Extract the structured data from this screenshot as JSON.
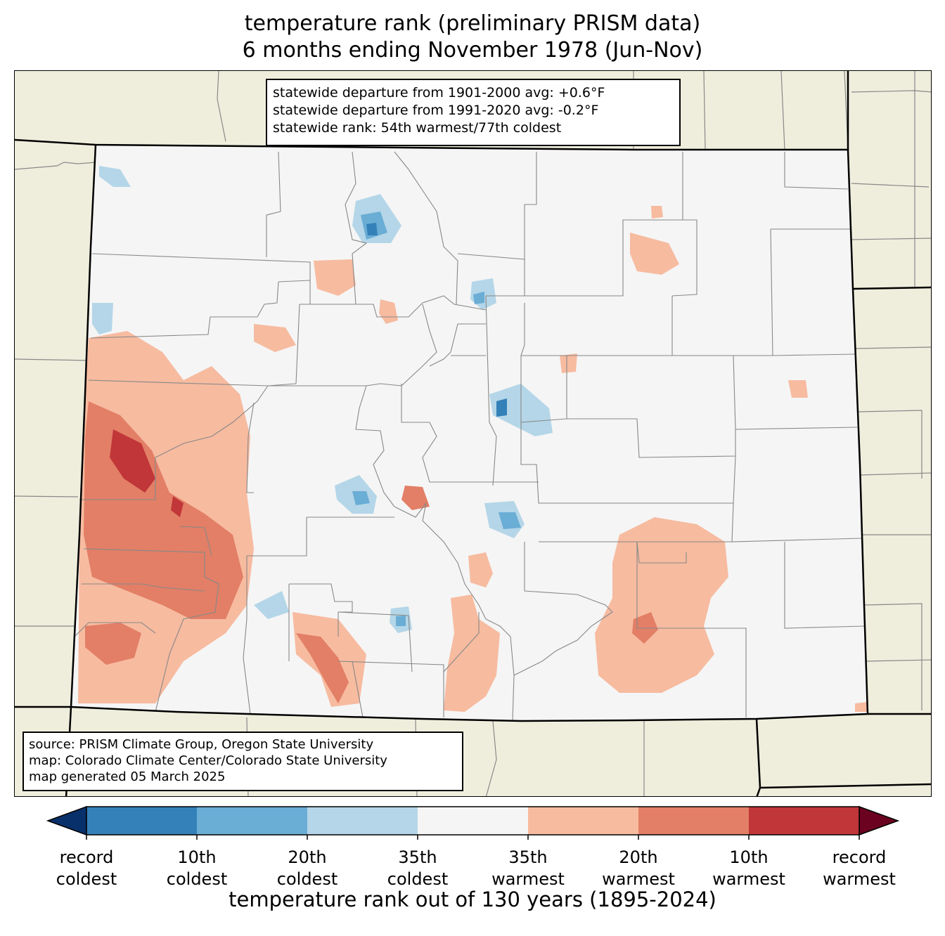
{
  "title": {
    "line1": "temperature rank (preliminary PRISM data)",
    "line2": "6 months ending November 1978 (Jun-Nov)"
  },
  "stats": {
    "line1": "statewide departure from 1901-2000 avg: +0.6°F",
    "line2": "statewide departure from 1991-2020 avg: -0.2°F",
    "line3": "statewide rank: 54th warmest/77th coldest"
  },
  "source": {
    "line1": "source: PRISM Climate Group, Oregon State University",
    "line2": "map: Colorado Climate Center/Colorado State University",
    "line3": "map generated 05 March 2025"
  },
  "colorbar": {
    "caption": "temperature rank out of 130 years (1895-2024)",
    "ticks": [
      {
        "line1": "record",
        "line2": "coldest"
      },
      {
        "line1": "10th",
        "line2": "coldest"
      },
      {
        "line1": "20th",
        "line2": "coldest"
      },
      {
        "line1": "35th",
        "line2": "coldest"
      },
      {
        "line1": "35th",
        "line2": "warmest"
      },
      {
        "line1": "20th",
        "line2": "warmest"
      },
      {
        "line1": "10th",
        "line2": "warmest"
      },
      {
        "line1": "record",
        "line2": "warmest"
      }
    ],
    "colors": {
      "under": "#08306b",
      "bins": [
        "#3480b9",
        "#6aadd5",
        "#b4d6e8",
        "#f5f5f5",
        "#f7bba0",
        "#e27f66",
        "#c13639"
      ],
      "over": "#6b0220"
    }
  },
  "map_colors": {
    "background": "#efeedd",
    "state": "#f5f5f5",
    "county_lines": "#888888",
    "borders": "#000000"
  }
}
